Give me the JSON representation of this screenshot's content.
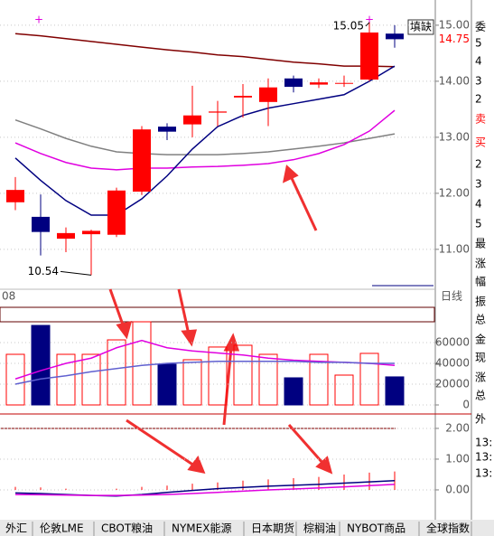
{
  "chart_data": [
    {
      "type": "candlestick",
      "x_label_left": "08",
      "x_label_right": "日线",
      "button": "填缺",
      "open": [
        11.84,
        11.58,
        11.19,
        11.27,
        11.26,
        12.03,
        13.19,
        13.23,
        13.44,
        13.71,
        13.63,
        14.05,
        13.94,
        13.96,
        14.03,
        14.85
      ],
      "high": [
        12.29,
        11.98,
        11.39,
        11.35,
        12.1,
        13.2,
        13.25,
        13.92,
        13.65,
        13.95,
        14.05,
        14.1,
        14.05,
        14.1,
        15.05,
        15.0
      ],
      "low": [
        11.7,
        10.89,
        10.95,
        10.54,
        11.22,
        11.97,
        12.95,
        13.0,
        13.2,
        13.35,
        13.2,
        13.8,
        13.88,
        13.9,
        14.0,
        14.6
      ],
      "close": [
        12.06,
        11.31,
        11.29,
        11.33,
        12.05,
        13.14,
        13.1,
        13.39,
        13.46,
        13.74,
        13.89,
        13.9,
        13.98,
        13.97,
        14.87,
        14.75
      ],
      "up_color": "#ff0000",
      "down_color": "#000080",
      "series": [
        {
          "color": "#800000",
          "values": [
            14.85,
            14.81,
            14.76,
            14.71,
            14.66,
            14.61,
            14.56,
            14.52,
            14.47,
            14.44,
            14.39,
            14.34,
            14.31,
            14.27,
            14.27,
            14.26
          ]
        },
        {
          "color": "#808080",
          "values": [
            13.31,
            13.15,
            12.98,
            12.84,
            12.74,
            12.71,
            12.69,
            12.69,
            12.69,
            12.71,
            12.74,
            12.79,
            12.84,
            12.9,
            12.98,
            13.06
          ]
        },
        {
          "color": "#e000e0",
          "values": [
            12.9,
            12.71,
            12.55,
            12.45,
            12.42,
            12.45,
            12.45,
            12.47,
            12.48,
            12.5,
            12.53,
            12.6,
            12.71,
            12.87,
            13.11,
            13.48
          ]
        },
        {
          "color": "#000080",
          "values": [
            12.63,
            12.23,
            11.87,
            11.61,
            11.61,
            11.9,
            12.31,
            12.79,
            13.19,
            13.39,
            13.52,
            13.6,
            13.68,
            13.76,
            14.0,
            14.27
          ]
        }
      ],
      "low_label": "10.54",
      "high_label": "15.05",
      "last_price": 14.75,
      "ylim": [
        10.32,
        15.45
      ],
      "yticks": [
        {
          "value": 11,
          "label": "11.00"
        },
        {
          "value": 12,
          "label": "12.00"
        },
        {
          "value": 13,
          "label": "13.00"
        },
        {
          "value": 14,
          "label": "14.00"
        },
        {
          "value": 15,
          "label": "15.00"
        }
      ]
    },
    {
      "type": "volume",
      "values": [
        48700,
        76500,
        48700,
        48700,
        62600,
        80000,
        39100,
        43500,
        55700,
        57400,
        48700,
        26100,
        48700,
        28700,
        49600,
        27000
      ],
      "series": [
        {
          "color": "#e000e0",
          "values": [
            25000,
            33000,
            40000,
            45000,
            55000,
            62000,
            55000,
            52000,
            50000,
            48000,
            45000,
            43000,
            42000,
            41000,
            40000,
            38000
          ]
        },
        {
          "color": "#6060d0",
          "values": [
            20000,
            25000,
            28000,
            32000,
            35000,
            38000,
            40000,
            41000,
            42000,
            42000,
            42000,
            42000,
            41000,
            41000,
            40000,
            40000
          ]
        }
      ],
      "ylim": [
        0,
        80000
      ],
      "yticks": [
        0,
        20000,
        40000,
        60000
      ]
    },
    {
      "type": "macd",
      "values": [
        0.1,
        0.08,
        0.04,
        0,
        0.04,
        0.1,
        0.14,
        0.2,
        0.24,
        0.3,
        0.34,
        0.38,
        0.42,
        0.5,
        0.56,
        0.6
      ],
      "series": [
        {
          "color": "#000080",
          "values": [
            -0.1,
            -0.12,
            -0.15,
            -0.18,
            -0.2,
            -0.15,
            -0.08,
            -0.02,
            0.04,
            0.08,
            0.12,
            0.15,
            0.18,
            0.22,
            0.26,
            0.3
          ]
        },
        {
          "color": "#e000e0",
          "values": [
            -0.15,
            -0.16,
            -0.17,
            -0.18,
            -0.18,
            -0.17,
            -0.15,
            -0.12,
            -0.08,
            -0.04,
            0,
            0.03,
            0.06,
            0.1,
            0.14,
            0.18
          ]
        }
      ],
      "ylim": [
        -0.53,
        2.41
      ],
      "yticks": [
        {
          "value": 0,
          "label": "0.00"
        },
        {
          "value": 1,
          "label": "1.00"
        },
        {
          "value": 2,
          "label": "2.00"
        }
      ]
    }
  ],
  "side_panel": [
    "委",
    "5",
    "4",
    "3",
    "2",
    "卖",
    "买",
    "2",
    "3",
    "4",
    "5",
    "最",
    "涨",
    "幅",
    "振",
    "总",
    "金",
    "现",
    "涨",
    "总",
    "外",
    "13:",
    "13:",
    "13:"
  ],
  "tabs": [
    "外汇",
    "伦敦LME",
    "CBOT粮油",
    "NYMEX能源",
    "日本期货",
    "棕榈油",
    "NYBOT商品",
    "全球指数"
  ]
}
